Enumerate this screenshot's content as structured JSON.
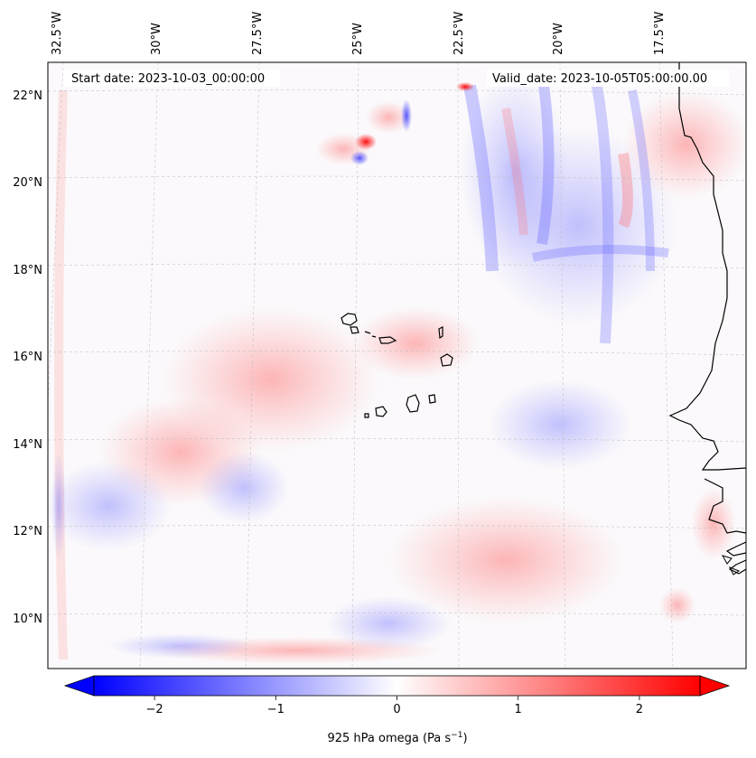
{
  "map": {
    "start_label": "Start date: 2023-10-03_00:00:00",
    "valid_label": "Valid_date: 2023-10-05T05:00:00.00",
    "lon_labels": [
      "32.5°W",
      "30°W",
      "27.5°W",
      "25°W",
      "22.5°W",
      "20°W",
      "17.5°W"
    ],
    "lat_labels": [
      "22°N",
      "20°N",
      "18°N",
      "16°N",
      "14°N",
      "12°N",
      "10°N"
    ],
    "colorbar": {
      "label": "925 hPa omega (Pa s",
      "label_sup": "−1",
      "label_end": ")",
      "ticks": [
        "−2",
        "−1",
        "0",
        "1",
        "2"
      ],
      "tick_values": [
        -2,
        -1,
        0,
        1,
        2
      ],
      "range": [
        -2.5,
        2.5
      ],
      "colors": [
        "#0000ff",
        "#ffffff",
        "#ff0000"
      ]
    },
    "features": {
      "coastline": "coastline-icon",
      "islands": "cape-verde-islands"
    }
  }
}
